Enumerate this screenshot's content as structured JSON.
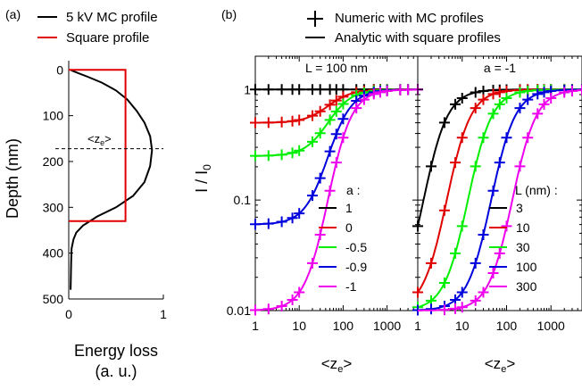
{
  "panel_labels": [
    "(a)",
    "(b)"
  ],
  "legend_a": [
    {
      "label": "5 kV MC profile",
      "color": "#000000"
    },
    {
      "label": "Square profile",
      "color": "#e00000"
    }
  ],
  "legend_b": [
    {
      "label": "Numeric with MC profiles",
      "marker": "plus"
    },
    {
      "label": "Analytic with square profiles",
      "marker": "line"
    }
  ],
  "chart_data": [
    {
      "type": "line",
      "panel": "(a)",
      "xlabel": "Energy loss",
      "xlabel2": "(a. u.)",
      "ylabel": "Depth (nm)",
      "xlim": [
        0,
        1
      ],
      "ylim": [
        500,
        -20
      ],
      "y_inverted": true,
      "xticks": [
        "0",
        "1"
      ],
      "xtick_values": [
        0,
        1
      ],
      "yticks": [
        "0",
        "100",
        "200",
        "300",
        "400",
        "500"
      ],
      "ytick_values": [
        0,
        100,
        200,
        300,
        400,
        500
      ],
      "mean_depth": {
        "label": "<z",
        "sub": "e",
        "close": ">",
        "value": 172
      },
      "series": [
        {
          "name": "5 kV MC profile",
          "color": "#000000",
          "points": [
            [
              0.02,
              480
            ],
            [
              0.025,
              420
            ],
            [
              0.03,
              390
            ],
            [
              0.05,
              370
            ],
            [
              0.08,
              355
            ],
            [
              0.15,
              340
            ],
            [
              0.3,
              320
            ],
            [
              0.5,
              300
            ],
            [
              0.68,
              275
            ],
            [
              0.8,
              245
            ],
            [
              0.86,
              210
            ],
            [
              0.88,
              175
            ],
            [
              0.86,
              145
            ],
            [
              0.8,
              115
            ],
            [
              0.72,
              90
            ],
            [
              0.62,
              65
            ],
            [
              0.5,
              45
            ],
            [
              0.35,
              28
            ],
            [
              0.2,
              15
            ],
            [
              0.1,
              7
            ],
            [
              0.04,
              2
            ],
            [
              0.02,
              0
            ]
          ]
        },
        {
          "name": "Square profile",
          "color": "#e00000",
          "points": [
            [
              0,
              0
            ],
            [
              0.6,
              0
            ],
            [
              0.6,
              330
            ],
            [
              0,
              330
            ]
          ]
        }
      ]
    },
    {
      "type": "line",
      "panel": "b-left",
      "title": "L = 100 nm",
      "xlabel": "<z",
      "xlabel_sub": "e",
      "xlabel_close": ">",
      "ylabel": "I / I",
      "ylabel_sub": "0",
      "x_scale": "log",
      "y_scale": "log",
      "xlim": [
        1,
        5000
      ],
      "ylim": [
        0.01,
        2
      ],
      "xticks": [
        "1",
        "10",
        "100",
        "1000"
      ],
      "xtick_values": [
        1,
        10,
        100,
        1000
      ],
      "yticks": [
        "0.01",
        "0.1",
        "1"
      ],
      "ytick_values": [
        0.01,
        0.1,
        1
      ],
      "legend_title": "a :",
      "series": [
        {
          "name": "1",
          "a": 1,
          "color": "#000000",
          "i0": 1.0
        },
        {
          "name": "0",
          "a": 0,
          "color": "#e00000",
          "i0": 0.5
        },
        {
          "name": "-0.5",
          "a": -0.5,
          "color": "#00ee00",
          "i0": 0.25
        },
        {
          "name": "-0.9",
          "a": -0.9,
          "color": "#0000dd",
          "i0": 0.06
        },
        {
          "name": "-1",
          "a": -1,
          "color": "#ee00ee",
          "i0": 0.01
        }
      ],
      "marker_x": [
        1,
        2,
        4,
        7,
        10,
        20,
        30,
        50,
        70,
        100,
        200,
        300,
        500,
        700,
        1000,
        2000,
        3000,
        5000
      ]
    },
    {
      "type": "line",
      "panel": "b-right",
      "title": "a = -1",
      "xlabel": "<z",
      "xlabel_sub": "e",
      "xlabel_close": ">",
      "x_scale": "log",
      "y_scale": "log",
      "xlim": [
        1,
        5000
      ],
      "ylim": [
        0.01,
        2
      ],
      "xticks": [
        "1",
        "10",
        "100",
        "1000"
      ],
      "xtick_values": [
        1,
        10,
        100,
        1000
      ],
      "legend_title": "L (nm) :",
      "series": [
        {
          "name": "3",
          "L": 3,
          "color": "#000000"
        },
        {
          "name": "10",
          "L": 10,
          "color": "#e00000"
        },
        {
          "name": "30",
          "L": 30,
          "color": "#00ee00"
        },
        {
          "name": "100",
          "L": 100,
          "color": "#0000dd"
        },
        {
          "name": "300",
          "L": 300,
          "color": "#ee00ee"
        }
      ],
      "marker_x": [
        1,
        2,
        4,
        7,
        10,
        20,
        30,
        50,
        70,
        100,
        200,
        300,
        500,
        700,
        1000,
        2000,
        3000,
        5000
      ]
    }
  ]
}
